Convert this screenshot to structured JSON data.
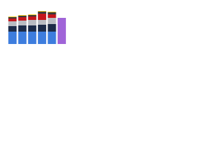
{
  "chart_data": {
    "type": "stacked-bar",
    "categories": [
      null,
      null,
      null,
      null,
      null,
      null
    ],
    "series": [
      {
        "color": "#3d7dde",
        "values": [
          18,
          18,
          18,
          18,
          18,
          null
        ]
      },
      {
        "color": "#1c2b48",
        "values": [
          8,
          9,
          9,
          10,
          11,
          null
        ]
      },
      {
        "color": "#b9bcc2",
        "values": [
          7,
          7,
          8,
          7,
          9,
          null
        ]
      },
      {
        "color": "#c4161c",
        "values": [
          4,
          5,
          5,
          9,
          5,
          null
        ]
      },
      {
        "color": "#3a3a3a",
        "values": [
          2,
          2,
          2,
          3,
          3,
          null
        ]
      },
      {
        "color": "#e8c21a",
        "values": [
          1,
          1,
          1,
          1,
          1,
          null
        ]
      },
      {
        "color": "#a064d8",
        "values": [
          null,
          null,
          null,
          null,
          null,
          38
        ]
      }
    ]
  }
}
